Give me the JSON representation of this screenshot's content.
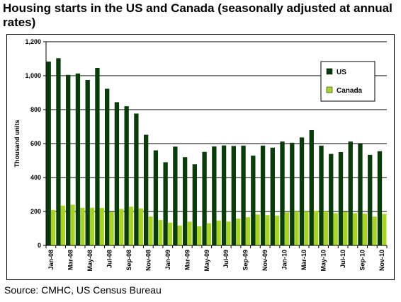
{
  "title": "Housing starts in the US and Canada (seasonally adjusted at annual rates)",
  "source": "Source: CMHC, US Census Bureau",
  "colors": {
    "us": "#0b3b0b",
    "canada": "#a8d42a",
    "grid": "#000000",
    "axis": "#000000"
  },
  "chart_data": {
    "type": "bar",
    "title": "Housing starts in the US and Canada (seasonally adjusted at annual rates)",
    "xlabel": "",
    "ylabel": "Thousand units",
    "ylim": [
      0,
      1200
    ],
    "yticks": [
      "0",
      "200",
      "400",
      "600",
      "800",
      "1,000",
      "1,200"
    ],
    "grid": true,
    "legend_position": "top-right",
    "categories": [
      "Jan-08",
      "Feb-08",
      "Mar-08",
      "Apr-08",
      "May-08",
      "Jun-08",
      "Jul-08",
      "Aug-08",
      "Sep-08",
      "Oct-08",
      "Nov-08",
      "Dec-08",
      "Jan-09",
      "Feb-09",
      "Mar-09",
      "Apr-09",
      "May-09",
      "Jun-09",
      "Jul-09",
      "Aug-09",
      "Sep-09",
      "Oct-09",
      "Nov-09",
      "Dec-09",
      "Jan-10",
      "Feb-10",
      "Mar-10",
      "Apr-10",
      "May-10",
      "Jun-10",
      "Jul-10",
      "Aug-10",
      "Sep-10",
      "Oct-10",
      "Nov-10"
    ],
    "shown_labels": [
      "Jan-08",
      "Mar-08",
      "May-08",
      "Jul-08",
      "Sep-08",
      "Nov-08",
      "Jan-09",
      "Mar-09",
      "May-09",
      "Jul-09",
      "Sep-09",
      "Nov-09",
      "Jan-10",
      "Mar-10",
      "May-10",
      "Jul-10",
      "Sep-10",
      "Nov-10"
    ],
    "series": [
      {
        "name": "US",
        "values": [
          1083,
          1103,
          1005,
          1013,
          975,
          1046,
          923,
          844,
          820,
          777,
          652,
          560,
          490,
          582,
          520,
          478,
          551,
          583,
          589,
          586,
          588,
          529,
          588,
          576,
          612,
          605,
          636,
          679,
          588,
          539,
          550,
          612,
          598,
          534,
          555
        ]
      },
      {
        "name": "Canada",
        "values": [
          208,
          234,
          240,
          222,
          222,
          221,
          197,
          215,
          228,
          218,
          170,
          150,
          134,
          117,
          140,
          113,
          131,
          147,
          141,
          158,
          166,
          182,
          178,
          176,
          195,
          200,
          200,
          204,
          200,
          190,
          198,
          190,
          187,
          170,
          186
        ]
      }
    ]
  }
}
